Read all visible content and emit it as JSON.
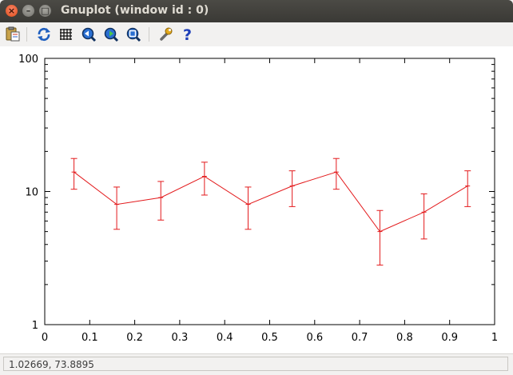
{
  "window": {
    "title": "Gnuplot (window id : 0)",
    "close_glyph": "×",
    "minimize_glyph": "–",
    "maximize_glyph": "□"
  },
  "toolbar": {
    "items": [
      {
        "icon": "clipboard-copy-icon"
      },
      {
        "icon": "replot-icon"
      },
      {
        "icon": "grid-icon"
      },
      {
        "icon": "zoom-previous-icon"
      },
      {
        "icon": "zoom-next-icon"
      },
      {
        "icon": "zoom-autoscale-icon"
      },
      {
        "icon": "settings-wrench-icon"
      },
      {
        "icon": "help-icon"
      }
    ]
  },
  "status": {
    "coordinates": "1.02669,  73.8895"
  },
  "chart_data": {
    "type": "line",
    "error_bars": true,
    "x_scale": "linear",
    "y_scale": "log",
    "xlim": [
      0,
      1
    ],
    "ylim": [
      1,
      100
    ],
    "x_ticks": [
      "0",
      "0.1",
      "0.2",
      "0.3",
      "0.4",
      "0.5",
      "0.6",
      "0.7",
      "0.8",
      "0.9",
      "1"
    ],
    "y_ticks": [
      "1",
      "10",
      "100"
    ],
    "grid": false,
    "series": [
      {
        "color": "#e31a1c",
        "points": [
          {
            "x": 0.065,
            "y": 14,
            "ylow": 10.4,
            "yhigh": 17.7
          },
          {
            "x": 0.16,
            "y": 8,
            "ylow": 5.2,
            "yhigh": 10.8
          },
          {
            "x": 0.258,
            "y": 9,
            "ylow": 6.1,
            "yhigh": 11.9
          },
          {
            "x": 0.355,
            "y": 13,
            "ylow": 9.4,
            "yhigh": 16.6
          },
          {
            "x": 0.452,
            "y": 8,
            "ylow": 5.2,
            "yhigh": 10.8
          },
          {
            "x": 0.55,
            "y": 11,
            "ylow": 7.7,
            "yhigh": 14.3
          },
          {
            "x": 0.648,
            "y": 14,
            "ylow": 10.4,
            "yhigh": 17.7
          },
          {
            "x": 0.745,
            "y": 5,
            "ylow": 2.8,
            "yhigh": 7.2
          },
          {
            "x": 0.843,
            "y": 7,
            "ylow": 4.4,
            "yhigh": 9.6
          },
          {
            "x": 0.94,
            "y": 11,
            "ylow": 7.7,
            "yhigh": 14.3
          }
        ]
      }
    ]
  }
}
